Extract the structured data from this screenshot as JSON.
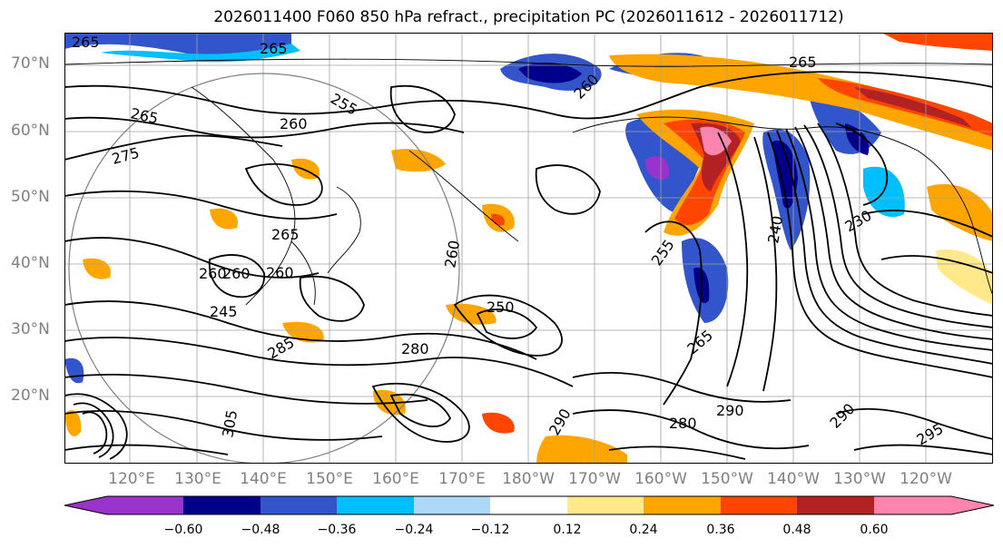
{
  "title": "2026011400 F060 850 hPa refract., precipitation PC (2026011612 - 2026011712)",
  "lat_labels": [
    "70°N",
    "60°N",
    "50°N",
    "40°N",
    "30°N",
    "20°N"
  ],
  "lon_labels": [
    "120°E",
    "130°E",
    "140°E",
    "150°E",
    "160°E",
    "170°E",
    "180°W",
    "170°W",
    "160°W",
    "150°W",
    "140°W",
    "130°W",
    "120°W"
  ],
  "contour_labels": [
    "265",
    "265",
    "265",
    "265",
    "255",
    "260",
    "260",
    "260",
    "260",
    "275",
    "265",
    "260",
    "255",
    "250",
    "240",
    "230",
    "265",
    "285",
    "280",
    "290",
    "290",
    "295",
    "305",
    "290",
    "280",
    "260",
    "245"
  ],
  "colorbar": {
    "ticks": [
      "−0.60",
      "−0.48",
      "−0.36",
      "−0.24",
      "−0.12",
      "0.12",
      "0.24",
      "0.36",
      "0.48",
      "0.60"
    ],
    "colors": [
      "#9933cc",
      "#00008b",
      "#3355cc",
      "#00bfff",
      "#add8f8",
      "#ffffff",
      "#ffe98a",
      "#ffa500",
      "#ff4500",
      "#b22222",
      "#ff85b0"
    ]
  }
}
